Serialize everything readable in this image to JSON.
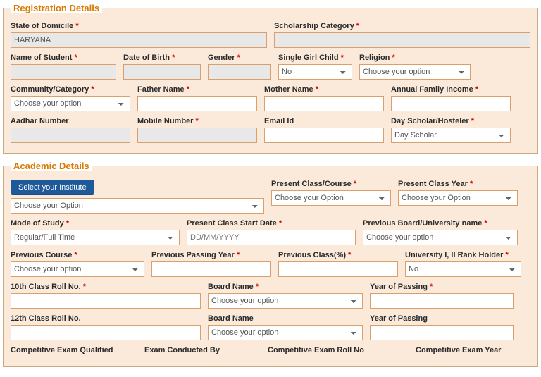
{
  "reg": {
    "legend": "Registration Details",
    "state_label": "State of Domicile",
    "state_value": "HARYANA",
    "scholarship_label": "Scholarship Category",
    "scholarship_value": "",
    "name_label": "Name of Student",
    "name_value": "",
    "dob_label": "Date of Birth",
    "dob_value": "",
    "gender_label": "Gender",
    "gender_value": "",
    "sgc_label": "Single Girl Child",
    "sgc_value": "No",
    "religion_label": "Religion",
    "religion_value": "Choose your option",
    "community_label": "Community/Category",
    "community_value": "Choose your option",
    "father_label": "Father Name",
    "father_value": "",
    "mother_label": "Mother Name",
    "mother_value": "",
    "income_label": "Annual Family Income",
    "income_value": "",
    "aadhar_label": "Aadhar Number",
    "aadhar_value": "",
    "mobile_label": "Mobile Number",
    "mobile_value": "",
    "email_label": "Email Id",
    "email_value": "",
    "dayscholar_label": "Day Scholar/Hosteler",
    "dayscholar_value": "Day Scholar"
  },
  "acad": {
    "legend": "Academic Details",
    "select_institute_btn": "Select your Institute",
    "institute_value": "Choose your Option",
    "present_class_label": "Present Class/Course",
    "present_class_value": "Choose your Option",
    "present_year_label": "Present Class Year",
    "present_year_value": "Choose your Option",
    "mode_label": "Mode of Study",
    "mode_value": "Regular/Full Time",
    "start_date_label": "Present Class Start Date",
    "start_date_placeholder": "DD/MM/YYYY",
    "prev_board_label": "Previous Board/University name",
    "prev_board_value": "Choose your option",
    "prev_course_label": "Previous Course",
    "prev_course_value": "Choose your option",
    "prev_pass_year_label": "Previous Passing Year",
    "prev_pass_year_value": "",
    "prev_class_pct_label": "Previous Class(%)",
    "prev_class_pct_value": "",
    "rank_holder_label": "University I, II Rank Holder",
    "rank_holder_value": "No",
    "tenth_roll_label": "10th Class Roll No.",
    "tenth_roll_value": "",
    "board_name_label": "Board Name",
    "board_name_value": "Choose your option",
    "year_passing_label": "Year of Passing",
    "year_passing_value": "",
    "twelfth_roll_label": "12th Class Roll No.",
    "twelfth_roll_value": "",
    "board_name2_label": "Board Name",
    "board_name2_value": "Choose your option",
    "year_passing2_label": "Year of Passing",
    "year_passing2_value": "",
    "comp_qualified_label": "Competitive Exam Qualified",
    "exam_conducted_label": "Exam Conducted By",
    "comp_roll_label": "Competitive Exam Roll No",
    "comp_year_label": "Competitive Exam Year"
  }
}
